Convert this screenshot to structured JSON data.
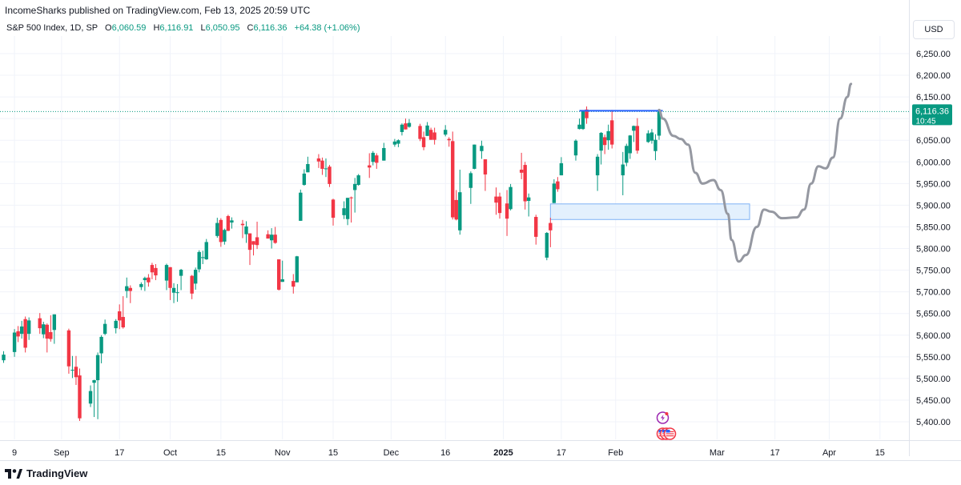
{
  "header": {
    "published": "IncomeSharks published on TradingView.com, Feb 13, 2025 20:59 UTC"
  },
  "legend": {
    "symbol": "S&P 500 Index, 1D, SP",
    "o_label": "O",
    "o_value": "6,060.59",
    "h_label": "H",
    "h_value": "6,116.91",
    "l_label": "L",
    "l_value": "6,050.95",
    "c_label": "C",
    "c_value": "6,116.36",
    "change": "+64.38 (+1.06%)"
  },
  "currency": "USD",
  "footer": {
    "brand": "TradingView",
    "logo_icon": "tradingview-logo-icon"
  },
  "colors": {
    "up": "#089981",
    "down": "#f23645",
    "resistance": "#2962ff",
    "zone": "#bbd9fb",
    "projection": "#9598a1"
  },
  "chart_data": {
    "type": "candlestick",
    "ylim": [
      5380,
      6290
    ],
    "y_ticks": [
      "6,250.00",
      "6,200.00",
      "6,150.00",
      "6,100.00",
      "6,050.00",
      "6,000.00",
      "5,950.00",
      "5,900.00",
      "5,850.00",
      "5,800.00",
      "5,750.00",
      "5,700.00",
      "5,650.00",
      "5,600.00",
      "5,550.00",
      "5,500.00",
      "5,450.00",
      "5,400.00"
    ],
    "y_tick_values": [
      6250,
      6200,
      6150,
      6100,
      6050,
      6000,
      5950,
      5900,
      5850,
      5800,
      5750,
      5700,
      5650,
      5600,
      5550,
      5500,
      5450,
      5400
    ],
    "x_ticks": [
      "9",
      "Sep",
      "17",
      "Oct",
      "15",
      "Nov",
      "15",
      "Dec",
      "16",
      "2025",
      "17",
      "Feb",
      "Mar",
      "17",
      "Apr",
      "15"
    ],
    "x_tick_dates": [
      "2024-08-19",
      "2024-09-01",
      "2024-09-17",
      "2024-10-01",
      "2024-10-15",
      "2024-11-01",
      "2024-11-15",
      "2024-12-01",
      "2024-12-16",
      "2025-01-01",
      "2025-01-17",
      "2025-02-01",
      "2025-03-01",
      "2025-03-17",
      "2025-04-01",
      "2025-04-15"
    ],
    "last_price_label": "6,116.36",
    "countdown_label": "10:45",
    "last_price": 6116.36,
    "candles": [
      {
        "date": "2024-08-16",
        "o": 5542,
        "h": 5563,
        "l": 5536,
        "c": 5555
      },
      {
        "date": "2024-08-19",
        "o": 5561,
        "h": 5614,
        "l": 5550,
        "c": 5606
      },
      {
        "date": "2024-08-20",
        "o": 5609,
        "h": 5621,
        "l": 5584,
        "c": 5597
      },
      {
        "date": "2024-08-21",
        "o": 5603,
        "h": 5633,
        "l": 5592,
        "c": 5620
      },
      {
        "date": "2024-08-22",
        "o": 5637,
        "h": 5643,
        "l": 5560,
        "c": 5571
      },
      {
        "date": "2024-08-23",
        "o": 5603,
        "h": 5641,
        "l": 5589,
        "c": 5634
      },
      {
        "date": "2024-08-26",
        "o": 5639,
        "h": 5651,
        "l": 5603,
        "c": 5616
      },
      {
        "date": "2024-08-27",
        "o": 5602,
        "h": 5631,
        "l": 5593,
        "c": 5625
      },
      {
        "date": "2024-08-28",
        "o": 5624,
        "h": 5627,
        "l": 5560,
        "c": 5592
      },
      {
        "date": "2024-08-29",
        "o": 5607,
        "h": 5646,
        "l": 5585,
        "c": 5591
      },
      {
        "date": "2024-08-30",
        "o": 5612,
        "h": 5648,
        "l": 5580,
        "c": 5648
      },
      {
        "date": "2024-09-03",
        "o": 5611,
        "h": 5615,
        "l": 5511,
        "c": 5528
      },
      {
        "date": "2024-09-04",
        "o": 5520,
        "h": 5552,
        "l": 5501,
        "c": 5520
      },
      {
        "date": "2024-09-05",
        "o": 5527,
        "h": 5552,
        "l": 5485,
        "c": 5503
      },
      {
        "date": "2024-09-06",
        "o": 5507,
        "h": 5523,
        "l": 5402,
        "c": 5408
      },
      {
        "date": "2024-09-09",
        "o": 5442,
        "h": 5484,
        "l": 5434,
        "c": 5471
      },
      {
        "date": "2024-09-10",
        "o": 5490,
        "h": 5497,
        "l": 5411,
        "c": 5496
      },
      {
        "date": "2024-09-11",
        "o": 5496,
        "h": 5560,
        "l": 5406,
        "c": 5554
      },
      {
        "date": "2024-09-12",
        "o": 5558,
        "h": 5600,
        "l": 5535,
        "c": 5596
      },
      {
        "date": "2024-09-13",
        "o": 5603,
        "h": 5636,
        "l": 5600,
        "c": 5626
      },
      {
        "date": "2024-09-16",
        "o": 5616,
        "h": 5637,
        "l": 5604,
        "c": 5633
      },
      {
        "date": "2024-09-17",
        "o": 5655,
        "h": 5671,
        "l": 5614,
        "c": 5634
      },
      {
        "date": "2024-09-18",
        "o": 5642,
        "h": 5690,
        "l": 5615,
        "c": 5618
      },
      {
        "date": "2024-09-19",
        "o": 5702,
        "h": 5733,
        "l": 5686,
        "c": 5713
      },
      {
        "date": "2024-09-20",
        "o": 5709,
        "h": 5715,
        "l": 5674,
        "c": 5702
      },
      {
        "date": "2024-09-23",
        "o": 5711,
        "h": 5722,
        "l": 5704,
        "c": 5718
      },
      {
        "date": "2024-09-24",
        "o": 5727,
        "h": 5735,
        "l": 5702,
        "c": 5732
      },
      {
        "date": "2024-09-25",
        "o": 5733,
        "h": 5741,
        "l": 5712,
        "c": 5722
      },
      {
        "date": "2024-09-26",
        "o": 5762,
        "h": 5767,
        "l": 5729,
        "c": 5745
      },
      {
        "date": "2024-09-27",
        "o": 5755,
        "h": 5764,
        "l": 5727,
        "c": 5738
      },
      {
        "date": "2024-09-30",
        "o": 5726,
        "h": 5765,
        "l": 5704,
        "c": 5762
      },
      {
        "date": "2024-10-01",
        "o": 5757,
        "h": 5757,
        "l": 5681,
        "c": 5709
      },
      {
        "date": "2024-10-02",
        "o": 5698,
        "h": 5720,
        "l": 5674,
        "c": 5709
      },
      {
        "date": "2024-10-03",
        "o": 5698,
        "h": 5718,
        "l": 5677,
        "c": 5699
      },
      {
        "date": "2024-10-04",
        "o": 5737,
        "h": 5753,
        "l": 5704,
        "c": 5751
      },
      {
        "date": "2024-10-07",
        "o": 5737,
        "h": 5739,
        "l": 5683,
        "c": 5696
      },
      {
        "date": "2024-10-08",
        "o": 5719,
        "h": 5756,
        "l": 5705,
        "c": 5751
      },
      {
        "date": "2024-10-09",
        "o": 5752,
        "h": 5796,
        "l": 5745,
        "c": 5792
      },
      {
        "date": "2024-10-10",
        "o": 5778,
        "h": 5795,
        "l": 5764,
        "c": 5780
      },
      {
        "date": "2024-10-11",
        "o": 5775,
        "h": 5822,
        "l": 5774,
        "c": 5815
      },
      {
        "date": "2024-10-14",
        "o": 5829,
        "h": 5871,
        "l": 5825,
        "c": 5859
      },
      {
        "date": "2024-10-15",
        "o": 5866,
        "h": 5870,
        "l": 5804,
        "c": 5815
      },
      {
        "date": "2024-10-16",
        "o": 5816,
        "h": 5846,
        "l": 5809,
        "c": 5843
      },
      {
        "date": "2024-10-17",
        "o": 5875,
        "h": 5878,
        "l": 5840,
        "c": 5841
      },
      {
        "date": "2024-10-18",
        "o": 5860,
        "h": 5872,
        "l": 5846,
        "c": 5865
      },
      {
        "date": "2024-10-21",
        "o": 5857,
        "h": 5866,
        "l": 5824,
        "c": 5854
      },
      {
        "date": "2024-10-22",
        "o": 5833,
        "h": 5863,
        "l": 5813,
        "c": 5851
      },
      {
        "date": "2024-10-23",
        "o": 5835,
        "h": 5835,
        "l": 5762,
        "c": 5797
      },
      {
        "date": "2024-10-24",
        "o": 5817,
        "h": 5817,
        "l": 5784,
        "c": 5809
      },
      {
        "date": "2024-10-25",
        "o": 5826,
        "h": 5862,
        "l": 5799,
        "c": 5808
      },
      {
        "date": "2024-10-28",
        "o": 5833,
        "h": 5842,
        "l": 5823,
        "c": 5823
      },
      {
        "date": "2024-10-29",
        "o": 5819,
        "h": 5847,
        "l": 5800,
        "c": 5832
      },
      {
        "date": "2024-10-30",
        "o": 5832,
        "h": 5850,
        "l": 5811,
        "c": 5813
      },
      {
        "date": "2024-10-31",
        "o": 5775,
        "h": 5775,
        "l": 5703,
        "c": 5705
      },
      {
        "date": "2024-11-01",
        "o": 5723,
        "h": 5772,
        "l": 5723,
        "c": 5729
      },
      {
        "date": "2024-11-04",
        "o": 5725,
        "h": 5741,
        "l": 5696,
        "c": 5712
      },
      {
        "date": "2024-11-05",
        "o": 5722,
        "h": 5783,
        "l": 5722,
        "c": 5782
      },
      {
        "date": "2024-11-06",
        "o": 5864,
        "h": 5936,
        "l": 5864,
        "c": 5929
      },
      {
        "date": "2024-11-07",
        "o": 5947,
        "h": 5983,
        "l": 5945,
        "c": 5973
      },
      {
        "date": "2024-11-08",
        "o": 5976,
        "h": 6012,
        "l": 5976,
        "c": 5995
      },
      {
        "date": "2024-11-11",
        "o": 6008,
        "h": 6018,
        "l": 5986,
        "c": 6001
      },
      {
        "date": "2024-11-12",
        "o": 6003,
        "h": 6010,
        "l": 5970,
        "c": 5984
      },
      {
        "date": "2024-11-13",
        "o": 5985,
        "h": 6008,
        "l": 5965,
        "c": 5985
      },
      {
        "date": "2024-11-14",
        "o": 5989,
        "h": 5993,
        "l": 5942,
        "c": 5949
      },
      {
        "date": "2024-11-15",
        "o": 5913,
        "h": 5915,
        "l": 5853,
        "c": 5871
      },
      {
        "date": "2024-11-18",
        "o": 5877,
        "h": 5909,
        "l": 5868,
        "c": 5893
      },
      {
        "date": "2024-11-19",
        "o": 5868,
        "h": 5917,
        "l": 5854,
        "c": 5917
      },
      {
        "date": "2024-11-20",
        "o": 5918,
        "h": 5920,
        "l": 5860,
        "c": 5917
      },
      {
        "date": "2024-11-21",
        "o": 5935,
        "h": 5963,
        "l": 5883,
        "c": 5949
      },
      {
        "date": "2024-11-22",
        "o": 5947,
        "h": 5972,
        "l": 5945,
        "c": 5969
      },
      {
        "date": "2024-11-25",
        "o": 5992,
        "h": 6020,
        "l": 5963,
        "c": 5987
      },
      {
        "date": "2024-11-26",
        "o": 6000,
        "h": 6025,
        "l": 5992,
        "c": 6021
      },
      {
        "date": "2024-11-27",
        "o": 6015,
        "h": 6020,
        "l": 5984,
        "c": 5998
      },
      {
        "date": "2024-11-29",
        "o": 6003,
        "h": 6044,
        "l": 6003,
        "c": 6032
      },
      {
        "date": "2024-12-02",
        "o": 6040,
        "h": 6053,
        "l": 6035,
        "c": 6047
      },
      {
        "date": "2024-12-03",
        "o": 6042,
        "h": 6052,
        "l": 6034,
        "c": 6050
      },
      {
        "date": "2024-12-04",
        "o": 6069,
        "h": 6089,
        "l": 6061,
        "c": 6086
      },
      {
        "date": "2024-12-05",
        "o": 6089,
        "h": 6100,
        "l": 6075,
        "c": 6075
      },
      {
        "date": "2024-12-06",
        "o": 6081,
        "h": 6099,
        "l": 6079,
        "c": 6090
      },
      {
        "date": "2024-12-09",
        "o": 6083,
        "h": 6088,
        "l": 6048,
        "c": 6053
      },
      {
        "date": "2024-12-10",
        "o": 6057,
        "h": 6070,
        "l": 6027,
        "c": 6034
      },
      {
        "date": "2024-12-11",
        "o": 6060,
        "h": 6092,
        "l": 6060,
        "c": 6084
      },
      {
        "date": "2024-12-12",
        "o": 6074,
        "h": 6079,
        "l": 6051,
        "c": 6051
      },
      {
        "date": "2024-12-13",
        "o": 6068,
        "h": 6079,
        "l": 6040,
        "c": 6051
      },
      {
        "date": "2024-12-16",
        "o": 6063,
        "h": 6085,
        "l": 6059,
        "c": 6074
      },
      {
        "date": "2024-12-17",
        "o": 6053,
        "h": 6057,
        "l": 6035,
        "c": 6050
      },
      {
        "date": "2024-12-18",
        "o": 6048,
        "h": 6070,
        "l": 5867,
        "c": 5872
      },
      {
        "date": "2024-12-19",
        "o": 5912,
        "h": 5935,
        "l": 5865,
        "c": 5867
      },
      {
        "date": "2024-12-20",
        "o": 5842,
        "h": 5982,
        "l": 5832,
        "c": 5930
      },
      {
        "date": "2024-12-23",
        "o": 5940,
        "h": 5978,
        "l": 5903,
        "c": 5974
      },
      {
        "date": "2024-12-24",
        "o": 5984,
        "h": 6040,
        "l": 5983,
        "c": 6040
      },
      {
        "date": "2024-12-26",
        "o": 6025,
        "h": 6049,
        "l": 6007,
        "c": 6037
      },
      {
        "date": "2024-12-27",
        "o": 6006,
        "h": 6006,
        "l": 5933,
        "c": 5971
      },
      {
        "date": "2024-12-30",
        "o": 5920,
        "h": 5941,
        "l": 5878,
        "c": 5906
      },
      {
        "date": "2024-12-31",
        "o": 5920,
        "h": 5929,
        "l": 5869,
        "c": 5882
      },
      {
        "date": "2025-01-02",
        "o": 5904,
        "h": 5935,
        "l": 5829,
        "c": 5869
      },
      {
        "date": "2025-01-03",
        "o": 5891,
        "h": 5949,
        "l": 5888,
        "c": 5942
      },
      {
        "date": "2025-01-06",
        "o": 5982,
        "h": 6021,
        "l": 5960,
        "c": 5975
      },
      {
        "date": "2025-01-07",
        "o": 5993,
        "h": 6000,
        "l": 5890,
        "c": 5909
      },
      {
        "date": "2025-01-08",
        "o": 5910,
        "h": 5927,
        "l": 5874,
        "c": 5918
      },
      {
        "date": "2025-01-10",
        "o": 5873,
        "h": 5878,
        "l": 5809,
        "c": 5827
      },
      {
        "date": "2025-01-13",
        "o": 5779,
        "h": 5838,
        "l": 5773,
        "c": 5836
      },
      {
        "date": "2025-01-14",
        "o": 5859,
        "h": 5871,
        "l": 5803,
        "c": 5842
      },
      {
        "date": "2025-01-15",
        "o": 5905,
        "h": 5960,
        "l": 5905,
        "c": 5950
      },
      {
        "date": "2025-01-16",
        "o": 5955,
        "h": 5965,
        "l": 5931,
        "c": 5937
      },
      {
        "date": "2025-01-17",
        "o": 5969,
        "h": 6011,
        "l": 5969,
        "c": 5997
      },
      {
        "date": "2025-01-21",
        "o": 6015,
        "h": 6052,
        "l": 6003,
        "c": 6049
      },
      {
        "date": "2025-01-22",
        "o": 6076,
        "h": 6100,
        "l": 6075,
        "c": 6086
      },
      {
        "date": "2025-01-23",
        "o": 6076,
        "h": 6118,
        "l": 6074,
        "c": 6119
      },
      {
        "date": "2025-01-24",
        "o": 6121,
        "h": 6128,
        "l": 6088,
        "c": 6101
      },
      {
        "date": "2025-01-27",
        "o": 5969,
        "h": 6018,
        "l": 5933,
        "c": 6012
      },
      {
        "date": "2025-01-28",
        "o": 6026,
        "h": 6069,
        "l": 5994,
        "c": 6067
      },
      {
        "date": "2025-01-29",
        "o": 6057,
        "h": 6063,
        "l": 6018,
        "c": 6039
      },
      {
        "date": "2025-01-30",
        "o": 6050,
        "h": 6086,
        "l": 6028,
        "c": 6071
      },
      {
        "date": "2025-01-31",
        "o": 6096,
        "h": 6120,
        "l": 6031,
        "c": 6040
      },
      {
        "date": "2025-02-03",
        "o": 5969,
        "h": 6023,
        "l": 5923,
        "c": 5994
      },
      {
        "date": "2025-02-04",
        "o": 5998,
        "h": 6042,
        "l": 5990,
        "c": 6037
      },
      {
        "date": "2025-02-05",
        "o": 6020,
        "h": 6062,
        "l": 6007,
        "c": 6061
      },
      {
        "date": "2025-02-06",
        "o": 6072,
        "h": 6084,
        "l": 6046,
        "c": 6083
      },
      {
        "date": "2025-02-07",
        "o": 6083,
        "h": 6101,
        "l": 6019,
        "c": 6026
      },
      {
        "date": "2025-02-10",
        "o": 6046,
        "h": 6073,
        "l": 6044,
        "c": 6066
      },
      {
        "date": "2025-02-11",
        "o": 6049,
        "h": 6076,
        "l": 6042,
        "c": 6068
      },
      {
        "date": "2025-02-12",
        "o": 6025,
        "h": 6064,
        "l": 6004,
        "c": 6051
      },
      {
        "date": "2025-02-13",
        "o": 6060.59,
        "h": 6116.91,
        "l": 6050.95,
        "c": 6116.36
      }
    ],
    "resistance_line": {
      "from": "2025-01-22",
      "to": "2025-02-14",
      "y": 6118
    },
    "demand_zone": {
      "from": "2025-01-14",
      "to": "2025-03-10",
      "y_low": 5867,
      "y_high": 5903
    },
    "projection_path": [
      {
        "date": "2025-02-13",
        "y": 6120
      },
      {
        "date": "2025-02-14",
        "y": 6100
      },
      {
        "date": "2025-02-17",
        "y": 6060
      },
      {
        "date": "2025-02-19",
        "y": 6053
      },
      {
        "date": "2025-02-21",
        "y": 6040
      },
      {
        "date": "2025-02-23",
        "y": 5975
      },
      {
        "date": "2025-02-25",
        "y": 5950
      },
      {
        "date": "2025-02-28",
        "y": 5958
      },
      {
        "date": "2025-03-02",
        "y": 5935
      },
      {
        "date": "2025-03-04",
        "y": 5880
      },
      {
        "date": "2025-03-05",
        "y": 5820
      },
      {
        "date": "2025-03-07",
        "y": 5770
      },
      {
        "date": "2025-03-09",
        "y": 5785
      },
      {
        "date": "2025-03-12",
        "y": 5850
      },
      {
        "date": "2025-03-14",
        "y": 5890
      },
      {
        "date": "2025-03-16",
        "y": 5885
      },
      {
        "date": "2025-03-19",
        "y": 5870
      },
      {
        "date": "2025-03-23",
        "y": 5872
      },
      {
        "date": "2025-03-25",
        "y": 5890
      },
      {
        "date": "2025-03-27",
        "y": 5950
      },
      {
        "date": "2025-03-29",
        "y": 5990
      },
      {
        "date": "2025-03-31",
        "y": 5985
      },
      {
        "date": "2025-04-02",
        "y": 6010
      },
      {
        "date": "2025-04-04",
        "y": 6100
      },
      {
        "date": "2025-04-06",
        "y": 6150
      },
      {
        "date": "2025-04-07",
        "y": 6180
      }
    ],
    "event_markers": [
      {
        "date": "2025-02-14",
        "kind": "lightning-event-icon",
        "row": 0
      },
      {
        "date": "2025-02-14",
        "kind": "us-flag-icon",
        "row": 1
      },
      {
        "date": "2025-02-15",
        "kind": "us-flag-icon",
        "row": 1
      },
      {
        "date": "2025-02-16",
        "kind": "us-flag-icon",
        "row": 1
      }
    ]
  }
}
